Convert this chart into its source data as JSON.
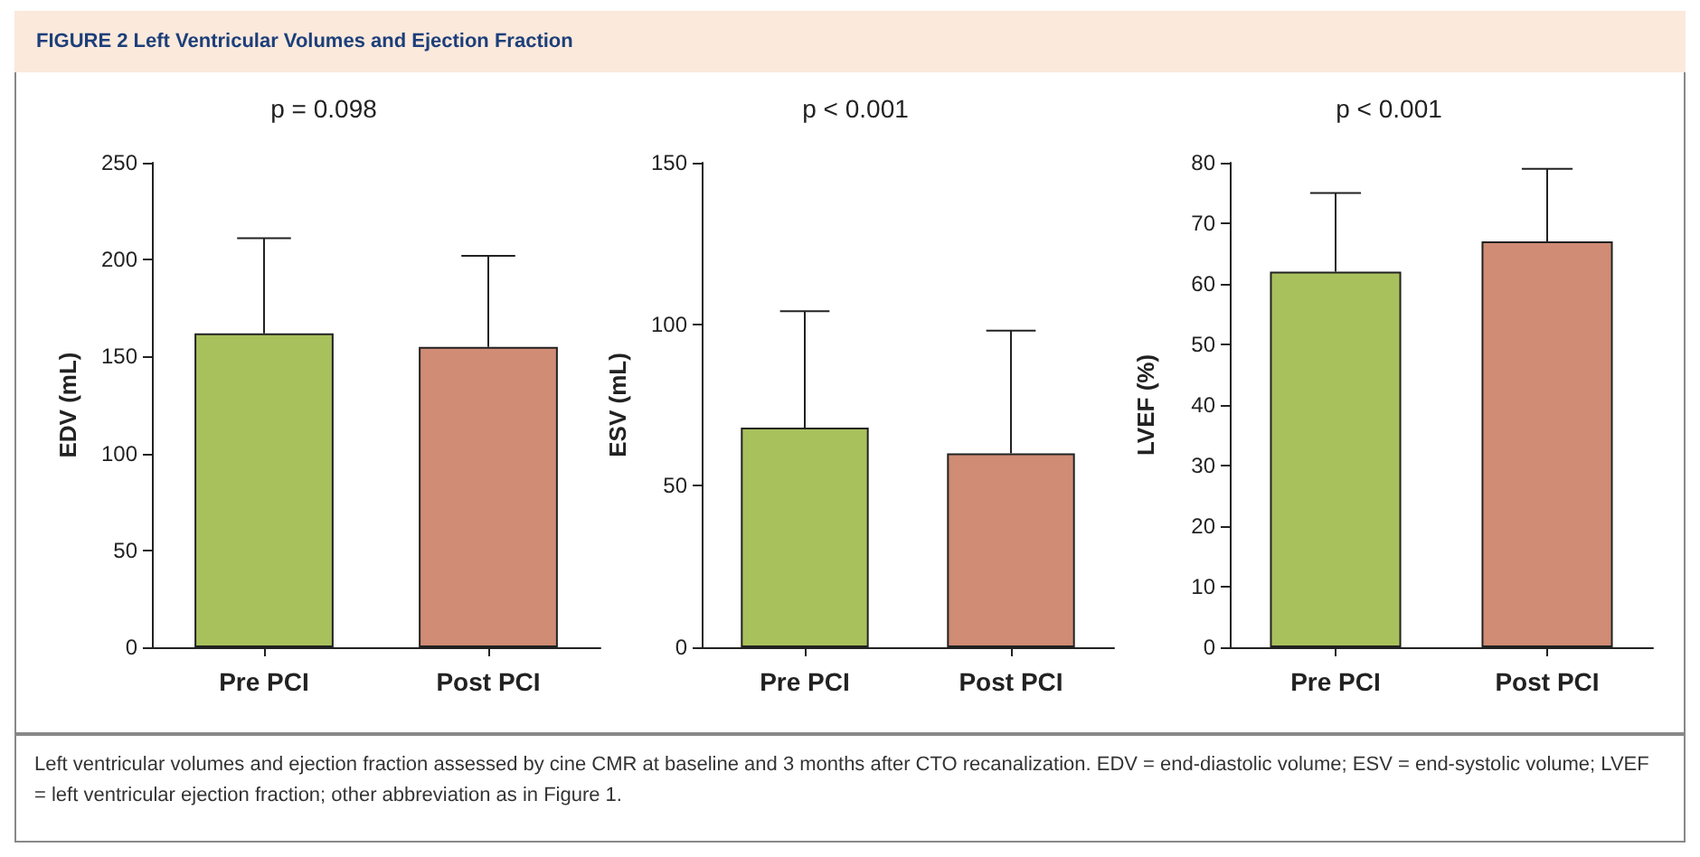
{
  "chart_data": [
    {
      "type": "bar",
      "title": "FIGURE 2 Left Ventricular Volumes and Ejection Fraction",
      "subtitle": "p = 0.098",
      "ylabel": "EDV (mL)",
      "categories": [
        "Pre PCI",
        "Post PCI"
      ],
      "values": [
        162,
        155
      ],
      "colors": [
        "#a9c15c",
        "#d08c74"
      ],
      "errors": [
        [
          162,
          211
        ],
        [
          155,
          202
        ]
      ],
      "ylim": [
        0,
        250
      ],
      "yticks": [
        0,
        50,
        100,
        150,
        200,
        250
      ],
      "grid": false,
      "annotations": [
        "Left ventricular volumes and ejection fraction assessed by cine CMR at baseline and 3 months after CTO recanalization. EDV = end-diastolic volume; ESV = end-systolic volume; LVEF = left ventricular ejection fraction; other abbreviation as in Figure 1."
      ]
    },
    {
      "type": "bar",
      "subtitle": "p < 0.001",
      "ylabel": "ESV (mL)",
      "categories": [
        "Pre PCI",
        "Post PCI"
      ],
      "values": [
        68,
        60
      ],
      "colors": [
        "#a9c15c",
        "#d08c74"
      ],
      "errors": [
        [
          68,
          104
        ],
        [
          60,
          98
        ]
      ],
      "ylim": [
        0,
        150
      ],
      "yticks": [
        0,
        50,
        100,
        150
      ],
      "grid": false
    },
    {
      "type": "bar",
      "subtitle": "p < 0.001",
      "ylabel": "LVEF (%)",
      "categories": [
        "Pre PCI",
        "Post PCI"
      ],
      "values": [
        62,
        67
      ],
      "colors": [
        "#a9c15c",
        "#d08c74"
      ],
      "errors": [
        [
          62,
          75
        ],
        [
          67,
          79
        ]
      ],
      "ylim": [
        0,
        80
      ],
      "yticks": [
        0,
        10,
        20,
        30,
        40,
        50,
        60,
        70,
        80
      ],
      "grid": false
    }
  ]
}
